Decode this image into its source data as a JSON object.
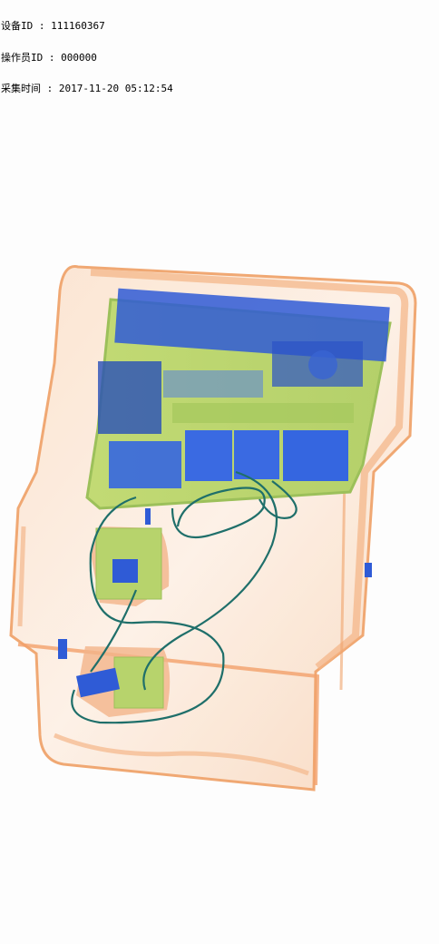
{
  "overlay": {
    "device_id_label": "设备ID",
    "device_id_value": "111160367",
    "operator_id_label": "操作员ID",
    "operator_id_value": "000000",
    "capture_time_label": "采集时间",
    "capture_time_value": "2017-11-20 05:12:54",
    "separator": " : "
  },
  "scan": {
    "palette": {
      "background": "#fdfdfd",
      "organic": "#f2a26a",
      "organic_light": "#fbd9bf",
      "mixed": "#b9d66a",
      "inorganic": "#2f5bd6",
      "inorganic_dark": "#1e3fa8",
      "cable": "#1f6f6a"
    }
  }
}
